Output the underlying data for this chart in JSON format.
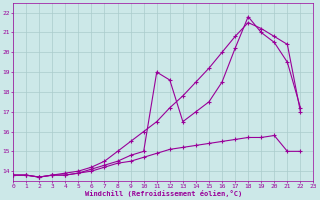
{
  "xlabel": "Windchill (Refroidissement éolien,°C)",
  "background_color": "#cce8e8",
  "grid_color": "#aacccc",
  "line_color": "#990099",
  "xlim": [
    0,
    23
  ],
  "ylim": [
    13.5,
    22.5
  ],
  "xticks": [
    0,
    1,
    2,
    3,
    4,
    5,
    6,
    7,
    8,
    9,
    10,
    11,
    12,
    13,
    14,
    15,
    16,
    17,
    18,
    19,
    20,
    21,
    22,
    23
  ],
  "yticks": [
    14,
    15,
    16,
    17,
    18,
    19,
    20,
    21,
    22
  ],
  "series1_x": [
    0,
    1,
    2,
    3,
    4,
    5,
    6,
    7,
    8,
    9,
    10,
    11,
    12,
    13,
    14,
    15,
    16,
    17,
    18,
    19,
    20,
    21,
    22
  ],
  "series1_y": [
    13.8,
    13.8,
    13.7,
    13.8,
    13.8,
    13.9,
    14.1,
    14.3,
    14.5,
    14.8,
    15.0,
    19.0,
    18.6,
    16.5,
    17.0,
    17.5,
    18.5,
    20.2,
    21.8,
    21.0,
    20.5,
    19.5,
    17.2
  ],
  "series2_x": [
    0,
    1,
    2,
    3,
    4,
    5,
    6,
    7,
    8,
    9,
    10,
    11,
    12,
    13,
    14,
    15,
    16,
    17,
    18,
    19,
    20,
    21,
    22
  ],
  "series2_y": [
    13.8,
    13.8,
    13.7,
    13.8,
    13.9,
    14.0,
    14.2,
    14.5,
    15.0,
    15.5,
    16.0,
    16.5,
    17.2,
    17.8,
    18.5,
    19.2,
    20.0,
    20.8,
    21.5,
    21.2,
    20.8,
    20.4,
    17.0
  ],
  "series3_x": [
    0,
    1,
    2,
    3,
    4,
    5,
    6,
    7,
    8,
    9,
    10,
    11,
    12,
    13,
    14,
    15,
    16,
    17,
    18,
    19,
    20,
    21,
    22
  ],
  "series3_y": [
    13.8,
    13.8,
    13.7,
    13.8,
    13.8,
    13.9,
    14.0,
    14.2,
    14.4,
    14.5,
    14.7,
    14.9,
    15.1,
    15.2,
    15.3,
    15.4,
    15.5,
    15.6,
    15.7,
    15.7,
    15.8,
    15.0,
    15.0
  ]
}
